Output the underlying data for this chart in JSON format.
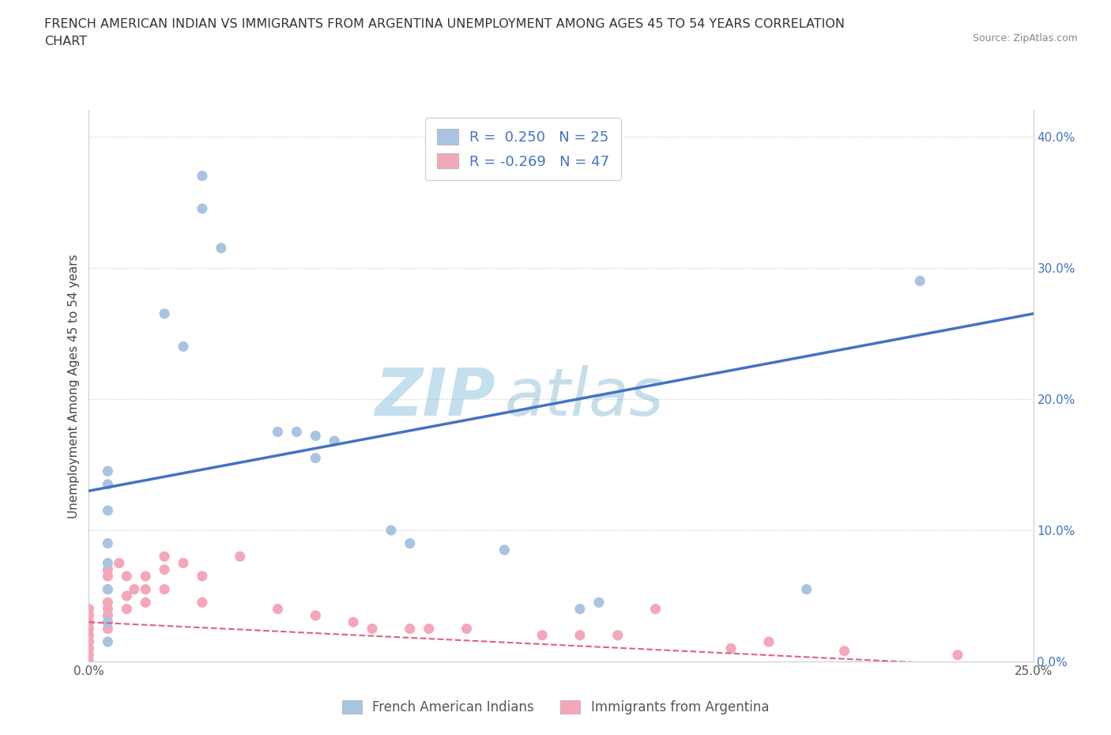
{
  "title": "FRENCH AMERICAN INDIAN VS IMMIGRANTS FROM ARGENTINA UNEMPLOYMENT AMONG AGES 45 TO 54 YEARS CORRELATION\nCHART",
  "source_text": "Source: ZipAtlas.com",
  "ylabel": "Unemployment Among Ages 45 to 54 years",
  "xlim": [
    0.0,
    0.25
  ],
  "ylim": [
    0.0,
    0.42
  ],
  "right_yticks": [
    0.0,
    0.1,
    0.2,
    0.3,
    0.4
  ],
  "right_yticklabels": [
    "0.0%",
    "10.0%",
    "20.0%",
    "30.0%",
    "40.0%"
  ],
  "xtick_vals": [
    0.0,
    0.05,
    0.1,
    0.15,
    0.2,
    0.25
  ],
  "xtick_labels": [
    "0.0%",
    "",
    "",
    "",
    "",
    "25.0%"
  ],
  "gridline_y": [
    0.1,
    0.2,
    0.3,
    0.4
  ],
  "blue_color": "#a8c4e0",
  "blue_line_color": "#4472c4",
  "pink_color": "#f4a7b9",
  "pink_line_color": "#e06080",
  "legend_R1": "R =  0.250",
  "legend_N1": "N = 25",
  "legend_R2": "R = -0.269",
  "legend_N2": "N = 47",
  "watermark_zip": "ZIP",
  "watermark_atlas": "atlas",
  "watermark_color": "#b8d8f0",
  "blue_scatter": [
    [
      0.005,
      0.145
    ],
    [
      0.005,
      0.135
    ],
    [
      0.005,
      0.115
    ],
    [
      0.005,
      0.09
    ],
    [
      0.005,
      0.075
    ],
    [
      0.005,
      0.055
    ],
    [
      0.005,
      0.03
    ],
    [
      0.005,
      0.015
    ],
    [
      0.02,
      0.265
    ],
    [
      0.025,
      0.24
    ],
    [
      0.03,
      0.37
    ],
    [
      0.03,
      0.345
    ],
    [
      0.035,
      0.315
    ],
    [
      0.05,
      0.175
    ],
    [
      0.055,
      0.175
    ],
    [
      0.06,
      0.172
    ],
    [
      0.065,
      0.168
    ],
    [
      0.06,
      0.155
    ],
    [
      0.08,
      0.1
    ],
    [
      0.085,
      0.09
    ],
    [
      0.11,
      0.085
    ],
    [
      0.13,
      0.04
    ],
    [
      0.135,
      0.045
    ],
    [
      0.19,
      0.055
    ],
    [
      0.22,
      0.29
    ]
  ],
  "pink_scatter": [
    [
      0.0,
      0.04
    ],
    [
      0.0,
      0.035
    ],
    [
      0.0,
      0.03
    ],
    [
      0.0,
      0.025
    ],
    [
      0.0,
      0.02
    ],
    [
      0.0,
      0.015
    ],
    [
      0.0,
      0.01
    ],
    [
      0.0,
      0.005
    ],
    [
      0.0,
      0.0
    ],
    [
      0.005,
      0.07
    ],
    [
      0.005,
      0.065
    ],
    [
      0.005,
      0.055
    ],
    [
      0.005,
      0.045
    ],
    [
      0.005,
      0.04
    ],
    [
      0.005,
      0.035
    ],
    [
      0.005,
      0.03
    ],
    [
      0.005,
      0.025
    ],
    [
      0.008,
      0.075
    ],
    [
      0.01,
      0.065
    ],
    [
      0.01,
      0.05
    ],
    [
      0.01,
      0.04
    ],
    [
      0.012,
      0.055
    ],
    [
      0.015,
      0.065
    ],
    [
      0.015,
      0.055
    ],
    [
      0.015,
      0.045
    ],
    [
      0.02,
      0.08
    ],
    [
      0.02,
      0.07
    ],
    [
      0.02,
      0.055
    ],
    [
      0.025,
      0.075
    ],
    [
      0.03,
      0.065
    ],
    [
      0.03,
      0.045
    ],
    [
      0.04,
      0.08
    ],
    [
      0.05,
      0.04
    ],
    [
      0.06,
      0.035
    ],
    [
      0.07,
      0.03
    ],
    [
      0.075,
      0.025
    ],
    [
      0.085,
      0.025
    ],
    [
      0.09,
      0.025
    ],
    [
      0.1,
      0.025
    ],
    [
      0.12,
      0.02
    ],
    [
      0.13,
      0.02
    ],
    [
      0.14,
      0.02
    ],
    [
      0.15,
      0.04
    ],
    [
      0.17,
      0.01
    ],
    [
      0.18,
      0.015
    ],
    [
      0.2,
      0.008
    ],
    [
      0.23,
      0.005
    ]
  ],
  "blue_line_x": [
    0.0,
    0.25
  ],
  "blue_line_y": [
    0.13,
    0.265
  ],
  "pink_line_x": [
    0.0,
    0.25
  ],
  "pink_line_y": [
    0.03,
    -0.005
  ],
  "legend_text_color": "#4472c4",
  "bottom_legend": [
    {
      "label": "French American Indians",
      "color": "#a8c4e0"
    },
    {
      "label": "Immigrants from Argentina",
      "color": "#f4a7b9"
    }
  ]
}
